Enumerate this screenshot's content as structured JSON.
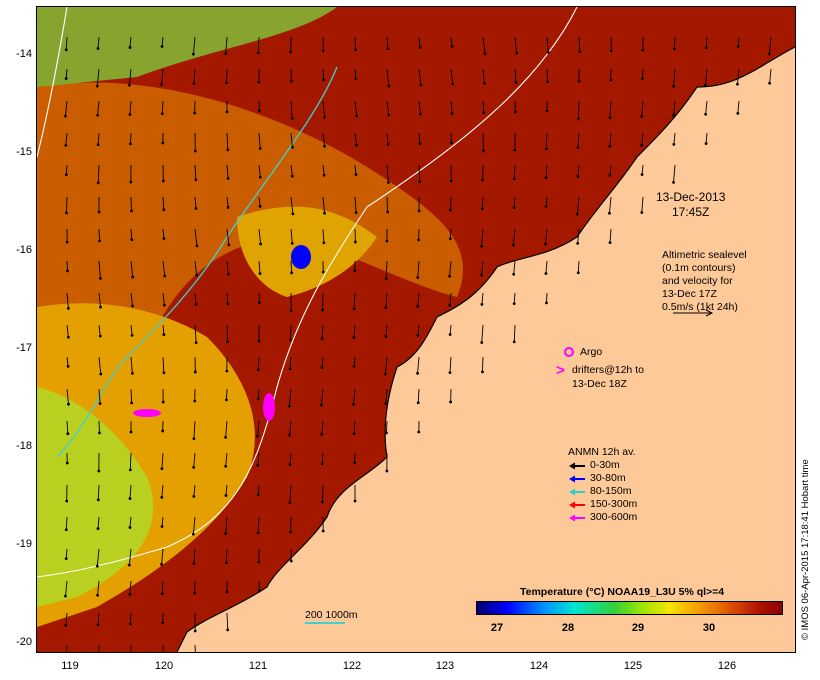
{
  "map": {
    "date_label": "13-Dec-2013",
    "time_label": "17:45Z",
    "altimetry_note": [
      "Altimetric sealevel",
      "(0.1m contours)",
      "and velocity for",
      "13-Dec 17Z",
      "0.5m/s (1kt 24h)"
    ],
    "argo_label": "Argo",
    "drifters_label": [
      "drifters@12h to",
      "13-Dec 18Z"
    ],
    "anmn": {
      "title": "ANMN 12h av.",
      "items": [
        {
          "label": "0-30m",
          "color": "#000000"
        },
        {
          "label": "30-80m",
          "color": "#0000ff"
        },
        {
          "label": "80-150m",
          "color": "#33cccc"
        },
        {
          "label": "150-300m",
          "color": "#ff0000"
        },
        {
          "label": "300-600m",
          "color": "#ff00ff"
        }
      ]
    },
    "colorbar": {
      "title": "Temperature (°C) NOAA19_L3U 5% ql>=4",
      "ticks": [
        "27",
        "28",
        "29",
        "30"
      ]
    },
    "isobath_label": "200  1000m",
    "credit": "© IMOS 06-Apr-2015 17:18:41 Hobart time",
    "y_ticks": [
      "-14",
      "-15",
      "-16",
      "-17",
      "-18",
      "-19",
      "-20"
    ],
    "x_ticks": [
      "119",
      "120",
      "121",
      "122",
      "123",
      "124",
      "125",
      "126"
    ],
    "colors": {
      "land": "#fdc998",
      "warm_sea": "#a51800",
      "mid_sea": "#d97a00",
      "cool_sea": "#e8b000",
      "isobath_200": "#40d0d0",
      "isobath_1000": "#ffffff"
    }
  }
}
